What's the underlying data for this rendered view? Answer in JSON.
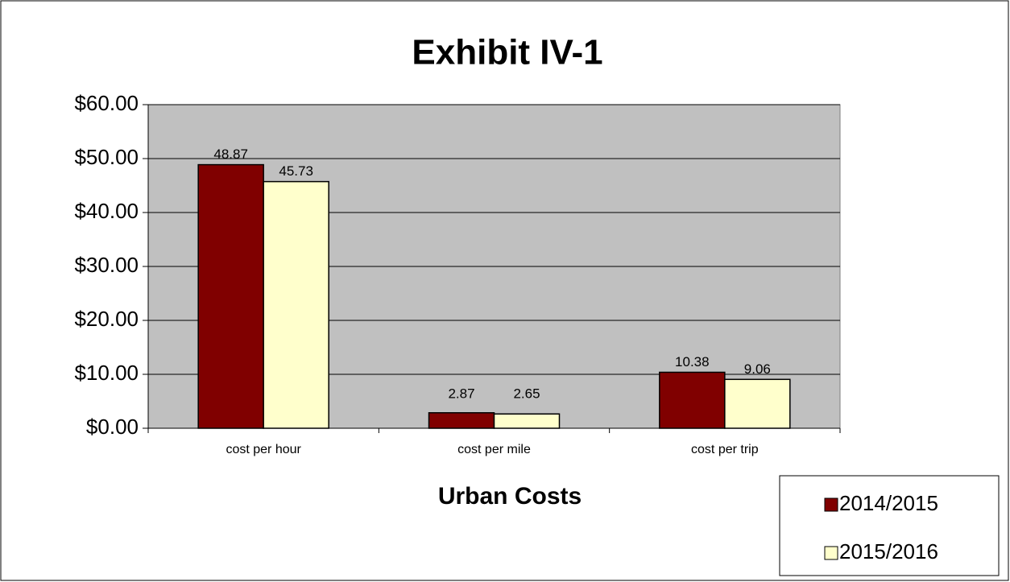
{
  "chart_data": {
    "type": "bar",
    "title": "Exhibit IV-1",
    "x_label": "Urban Costs",
    "categories": [
      "cost per hour",
      "cost per mile",
      "cost per trip"
    ],
    "series": [
      {
        "name": "2014/2015",
        "color": "#800000",
        "values": [
          48.87,
          2.87,
          10.38
        ]
      },
      {
        "name": "2015/2016",
        "color": "#ffffcc",
        "values": [
          45.73,
          2.65,
          9.06
        ]
      }
    ],
    "ylim": [
      0,
      60
    ],
    "yticks": [
      {
        "value": 0,
        "label": "$0.00"
      },
      {
        "value": 10,
        "label": "$10.00"
      },
      {
        "value": 20,
        "label": "$20.00"
      },
      {
        "value": 30,
        "label": "$30.00"
      },
      {
        "value": 40,
        "label": "$40.00"
      },
      {
        "value": 50,
        "label": "$50.00"
      },
      {
        "value": 60,
        "label": "$60.00"
      }
    ],
    "grid": true,
    "legend": "bottom-right"
  }
}
